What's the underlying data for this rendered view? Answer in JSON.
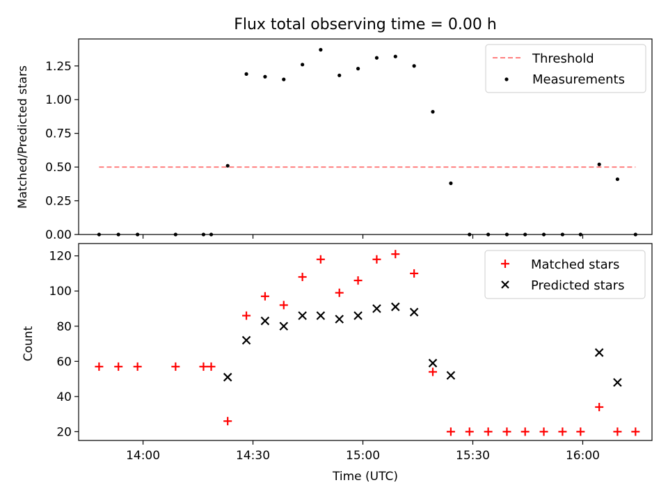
{
  "chart_data": [
    {
      "type": "scatter",
      "title": "Flux total observing time = 0.00 h",
      "xlabel": "",
      "ylabel": "Matched/Predicted stars",
      "xlim": [
        13.707,
        16.315
      ],
      "ylim": [
        0.0,
        1.45
      ],
      "yticks": [
        0.0,
        0.25,
        0.5,
        0.75,
        1.0,
        1.25
      ],
      "ytick_labels": [
        "0.00",
        "0.25",
        "0.50",
        "0.75",
        "1.00",
        "1.25"
      ],
      "threshold": {
        "name": "Threshold",
        "value": 0.5,
        "x_range": [
          13.8,
          16.24
        ],
        "color": "#ff7f7f"
      },
      "series": [
        {
          "name": "Measurements",
          "color": "#000000",
          "x": [
            13.8,
            13.888,
            13.975,
            14.148,
            14.275,
            14.31,
            14.385,
            14.47,
            14.555,
            14.64,
            14.725,
            14.808,
            14.893,
            14.978,
            15.063,
            15.148,
            15.233,
            15.318,
            15.4,
            15.485,
            15.57,
            15.655,
            15.738,
            15.823,
            15.908,
            15.99,
            16.075,
            16.158,
            16.24
          ],
          "y": [
            0,
            0,
            0,
            0,
            0,
            0,
            0.51,
            1.19,
            1.17,
            1.15,
            1.26,
            1.37,
            1.18,
            1.23,
            1.31,
            1.32,
            1.25,
            0.91,
            0.38,
            0,
            0,
            0,
            0,
            0,
            0,
            0,
            0.52,
            0.41,
            0
          ]
        }
      ],
      "legend": [
        "Threshold",
        "Measurements"
      ],
      "legend_position": "top-right"
    },
    {
      "type": "scatter",
      "title": "",
      "xlabel": "Time (UTC)",
      "ylabel": "Count",
      "xlim": [
        13.707,
        16.315
      ],
      "ylim": [
        15.0,
        127.0
      ],
      "xticks": [
        14.0,
        14.5,
        15.0,
        15.5,
        16.0
      ],
      "xtick_labels": [
        "14:00",
        "14:30",
        "15:00",
        "15:30",
        "16:00"
      ],
      "yticks": [
        20,
        40,
        60,
        80,
        100,
        120
      ],
      "ytick_labels": [
        "20",
        "40",
        "60",
        "80",
        "100",
        "120"
      ],
      "series": [
        {
          "name": "Matched stars",
          "marker": "plus",
          "color": "#ff0000",
          "x": [
            13.8,
            13.888,
            13.975,
            14.148,
            14.275,
            14.31,
            14.385,
            14.47,
            14.555,
            14.64,
            14.725,
            14.808,
            14.893,
            14.978,
            15.063,
            15.148,
            15.233,
            15.318,
            15.4,
            15.485,
            15.57,
            15.655,
            15.738,
            15.823,
            15.908,
            15.99,
            16.075,
            16.158,
            16.24
          ],
          "y": [
            57,
            57,
            57,
            57,
            57,
            57,
            26,
            86,
            97,
            92,
            108,
            118,
            99,
            106,
            118,
            121,
            110,
            54,
            20,
            20,
            20,
            20,
            20,
            20,
            20,
            20,
            34,
            20,
            20
          ]
        },
        {
          "name": "Predicted stars",
          "marker": "x",
          "color": "#000000",
          "x": [
            14.385,
            14.47,
            14.555,
            14.64,
            14.725,
            14.808,
            14.893,
            14.978,
            15.063,
            15.148,
            15.233,
            15.318,
            15.4,
            16.075,
            16.158
          ],
          "y": [
            51,
            72,
            83,
            80,
            86,
            86,
            84,
            86,
            90,
            91,
            88,
            59,
            52,
            65,
            48
          ]
        }
      ],
      "legend": [
        "Matched stars",
        "Predicted stars"
      ],
      "legend_position": "top-right"
    }
  ]
}
